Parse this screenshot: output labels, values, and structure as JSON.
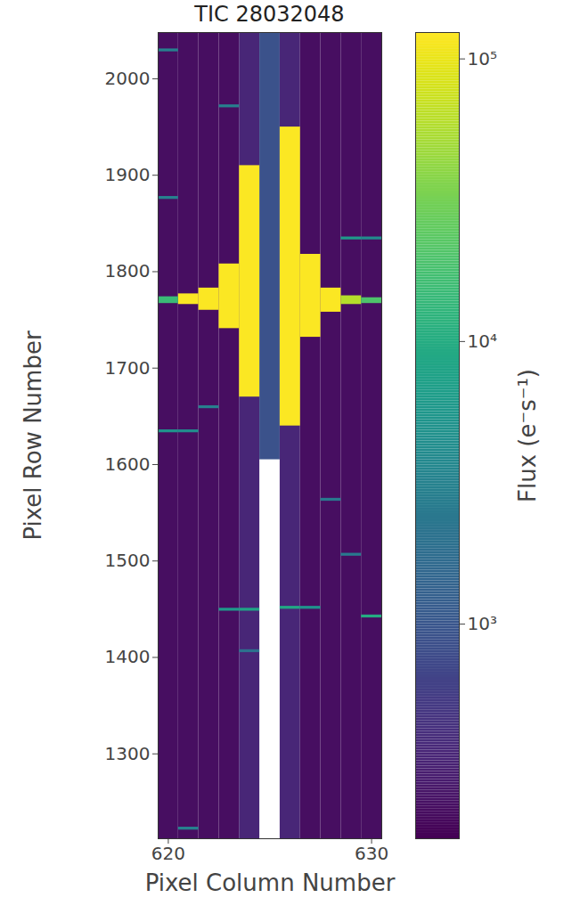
{
  "chart_data": {
    "type": "heatmap",
    "title": "TIC 28032048",
    "xlabel": "Pixel Column Number",
    "ylabel": "Pixel Row Number",
    "xlim": [
      619.5,
      630.5
    ],
    "ylim": [
      1212,
      2048
    ],
    "xticks": [
      620,
      630
    ],
    "yticks": [
      1300,
      1400,
      1500,
      1600,
      1700,
      1800,
      1900,
      2000
    ],
    "grid": false,
    "colorbar": {
      "label": "Flux (e⁻s⁻¹)",
      "log": true,
      "range": [
        174,
        124000
      ],
      "ticks": [
        {
          "value": 1000,
          "label": "10³"
        },
        {
          "value": 10000,
          "label": "10⁴"
        },
        {
          "value": 100000,
          "label": "10⁵"
        }
      ]
    },
    "cells": [
      {
        "column": 620,
        "row_start": 1212,
        "row_end": 2048,
        "flux": 220
      },
      {
        "column": 621,
        "row_start": 1212,
        "row_end": 2048,
        "flux": 220
      },
      {
        "column": 622,
        "row_start": 1212,
        "row_end": 2048,
        "flux": 220
      },
      {
        "column": 623,
        "row_start": 1212,
        "row_end": 2048,
        "flux": 220
      },
      {
        "column": 624,
        "row_start": 1212,
        "row_end": 2048,
        "flux": 350
      },
      {
        "column": 625,
        "row_start": 1605,
        "row_end": 2048,
        "flux": 900
      },
      {
        "column": 626,
        "row_start": 1212,
        "row_end": 2048,
        "flux": 350
      },
      {
        "column": 627,
        "row_start": 1212,
        "row_end": 2048,
        "flux": 220
      },
      {
        "column": 628,
        "row_start": 1212,
        "row_end": 2048,
        "flux": 220
      },
      {
        "column": 629,
        "row_start": 1212,
        "row_end": 2048,
        "flux": 220
      },
      {
        "column": 630,
        "row_start": 1212,
        "row_end": 2048,
        "flux": 220
      },
      {
        "column": 624,
        "row_start": 1670,
        "row_end": 1910,
        "flux": 120000
      },
      {
        "column": 626,
        "row_start": 1640,
        "row_end": 1950,
        "flux": 120000
      },
      {
        "column": 623,
        "row_start": 1741,
        "row_end": 1808,
        "flux": 120000
      },
      {
        "column": 622,
        "row_start": 1760,
        "row_end": 1783,
        "flux": 120000
      },
      {
        "column": 621,
        "row_start": 1766,
        "row_end": 1777,
        "flux": 120000
      },
      {
        "column": 627,
        "row_start": 1732,
        "row_end": 1818,
        "flux": 120000
      },
      {
        "column": 628,
        "row_start": 1758,
        "row_end": 1783,
        "flux": 120000
      },
      {
        "column": 629,
        "row_start": 1766,
        "row_end": 1775,
        "flux": 60000
      },
      {
        "column": 620,
        "row_start": 1767,
        "row_end": 1774,
        "flux": 15000
      },
      {
        "column": 630,
        "row_start": 1767,
        "row_end": 1773,
        "flux": 20000
      },
      {
        "column": 623,
        "row_start": 1448,
        "row_end": 1451,
        "flux": 6000
      },
      {
        "column": 624,
        "row_start": 1448,
        "row_end": 1451,
        "flux": 8000
      },
      {
        "column": 626,
        "row_start": 1450,
        "row_end": 1453,
        "flux": 9000
      },
      {
        "column": 627,
        "row_start": 1450,
        "row_end": 1453,
        "flux": 5000
      },
      {
        "column": 630,
        "row_start": 1441,
        "row_end": 1444,
        "flux": 10000
      },
      {
        "column": 620,
        "row_start": 1633,
        "row_end": 1636,
        "flux": 5000
      },
      {
        "column": 621,
        "row_start": 1633,
        "row_end": 1636,
        "flux": 4000
      },
      {
        "column": 629,
        "row_start": 1833,
        "row_end": 1836,
        "flux": 6000
      },
      {
        "column": 630,
        "row_start": 1833,
        "row_end": 1836,
        "flux": 4000
      },
      {
        "column": 620,
        "row_start": 2028,
        "row_end": 2031,
        "flux": 3000
      },
      {
        "column": 623,
        "row_start": 1970,
        "row_end": 1973,
        "flux": 3000
      },
      {
        "column": 620,
        "row_start": 1875,
        "row_end": 1878,
        "flux": 3000
      },
      {
        "column": 628,
        "row_start": 1562,
        "row_end": 1565,
        "flux": 2500
      },
      {
        "column": 622,
        "row_start": 1658,
        "row_end": 1661,
        "flux": 3000
      },
      {
        "column": 624,
        "row_start": 1405,
        "row_end": 1408,
        "flux": 2000
      },
      {
        "column": 629,
        "row_start": 1505,
        "row_end": 1508,
        "flux": 2500
      },
      {
        "column": 621,
        "row_start": 1221,
        "row_end": 1224,
        "flux": 3000
      }
    ]
  }
}
